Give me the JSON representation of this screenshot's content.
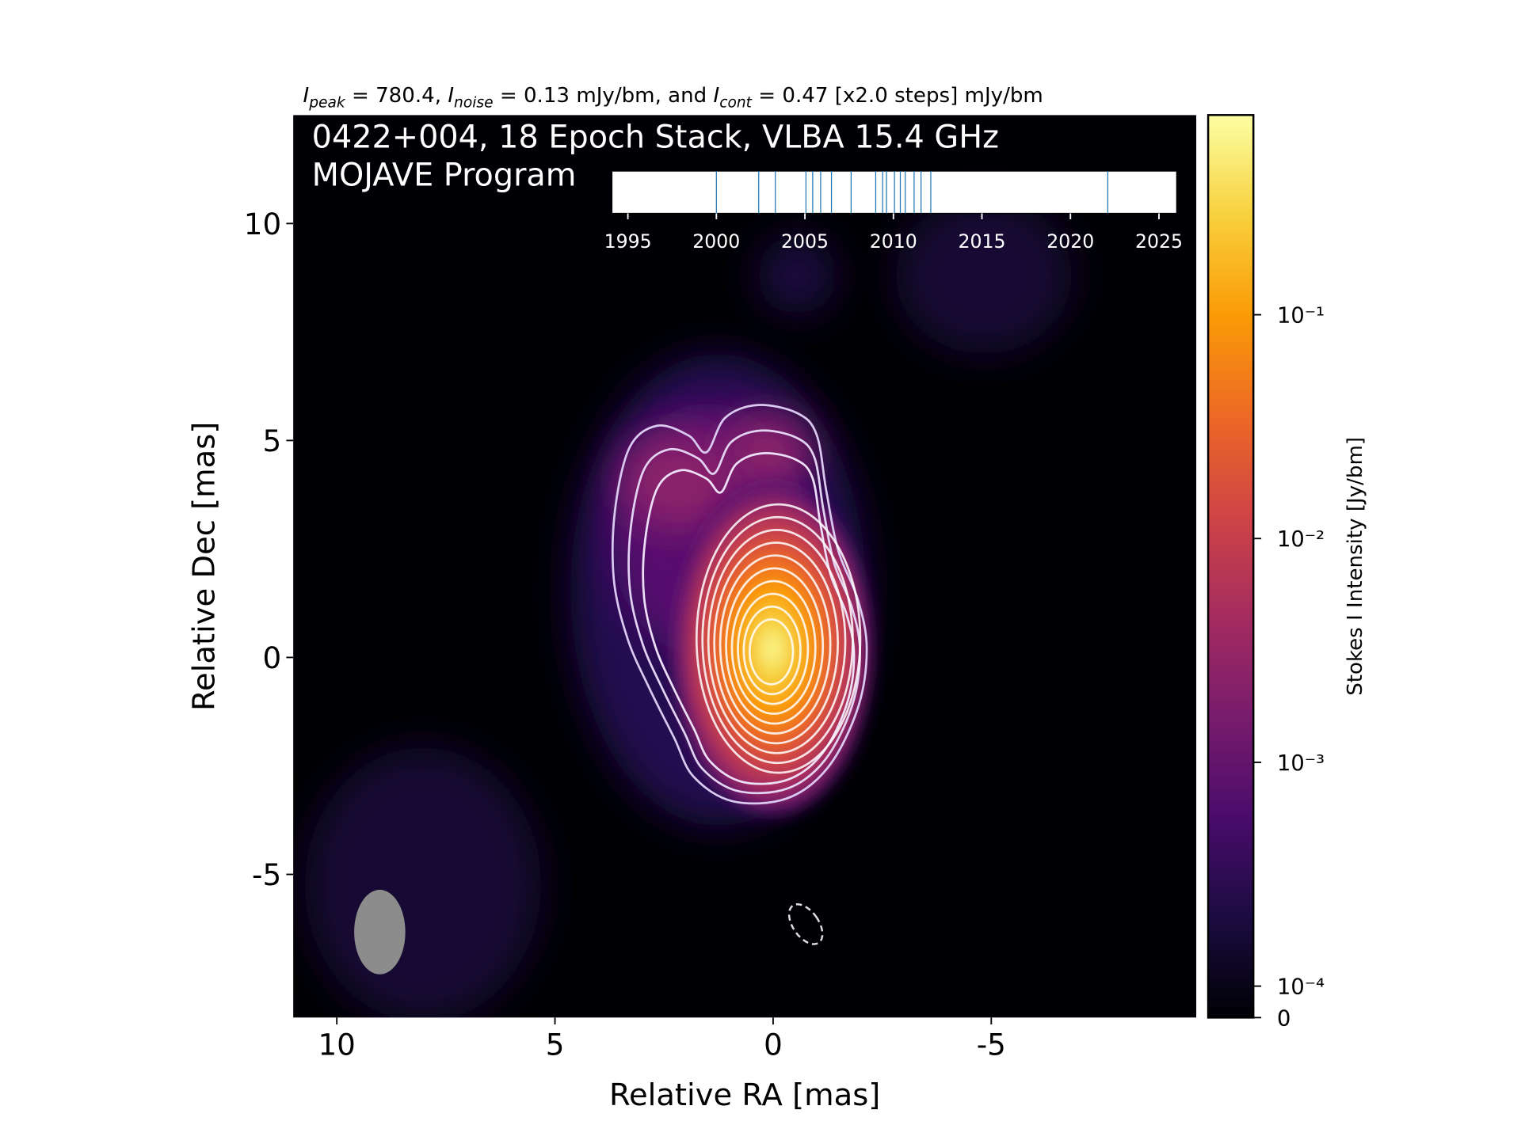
{
  "chart_data": [
    {
      "type": "image",
      "title": [
        [
          "I",
          "peak",
          " = 780.4, "
        ],
        [
          "I",
          "noise",
          " = 0.13 mJy/bm, and "
        ],
        [
          "I",
          "cont",
          " = 0.47 [x2.0 steps] mJy/bm"
        ]
      ],
      "annotations": [
        "0422+004, 18 Epoch Stack, VLBA 15.4 GHz",
        "MOJAVE Program"
      ],
      "xlabel": "Relative RA [mas]",
      "ylabel": "Relative Dec [mas]",
      "xlim": [
        11,
        -9.7
      ],
      "ylim": [
        -8.3,
        12.5
      ],
      "xticks": [
        10,
        5,
        0,
        -5
      ],
      "yticks": [
        -5,
        0,
        5,
        10
      ]
    },
    {
      "type": "colorbar",
      "label": "Stokes I Intensity [Jy/bm]",
      "colormap": "inferno",
      "scale": "symlog",
      "ylim": [
        0,
        0.7804
      ],
      "yticks": [
        0,
        {
          "value": 0.0001,
          "label": "10⁻⁴"
        },
        {
          "value": 0.001,
          "label": "10⁻³"
        },
        {
          "value": 0.01,
          "label": "10⁻²"
        },
        {
          "value": 0.1,
          "label": "10⁻¹"
        }
      ]
    },
    {
      "type": "rug",
      "color": "#1f77b4",
      "xlim": [
        1994.1,
        2026
      ],
      "xticks": [
        1995,
        2000,
        2005,
        2010,
        2015,
        2020,
        2025
      ],
      "x": [
        2000.0,
        2002.39,
        2003.33,
        2005.06,
        2005.44,
        2005.89,
        2006.5,
        2007.61,
        2009.0,
        2009.39,
        2009.61,
        2010.06,
        2010.39,
        2010.67,
        2011.17,
        2011.56,
        2012.11,
        2022.11
      ]
    }
  ]
}
